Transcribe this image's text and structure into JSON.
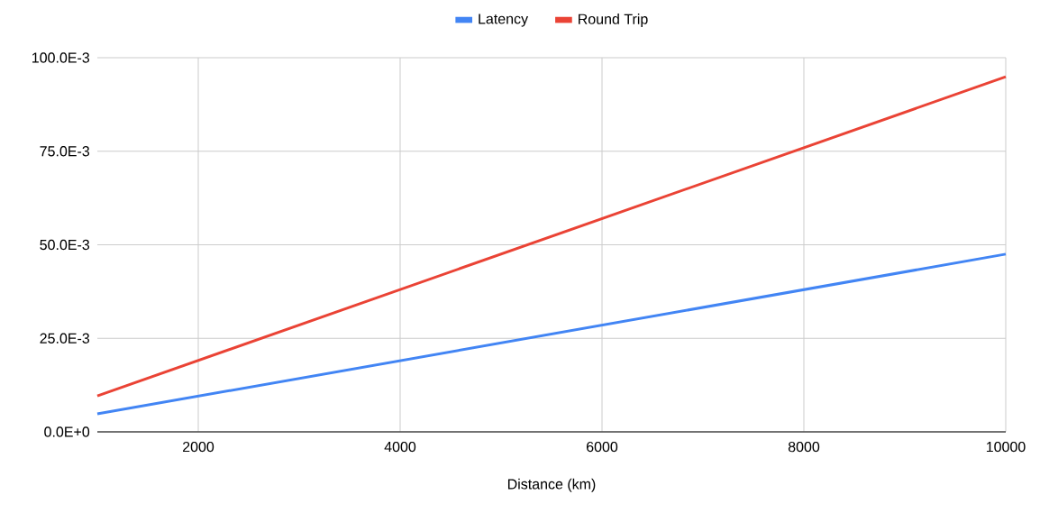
{
  "chart_data": {
    "type": "line",
    "xlabel": "Distance (km)",
    "x": [
      1000,
      10000
    ],
    "series": [
      {
        "name": "Latency",
        "color": "#4285f4",
        "values": [
          0.0048,
          0.0475
        ]
      },
      {
        "name": "Round Trip",
        "color": "#ea4335",
        "values": [
          0.0096,
          0.0949
        ]
      }
    ],
    "xlim": [
      1000,
      10000
    ],
    "xticks": [
      2000,
      4000,
      6000,
      8000,
      10000
    ],
    "ylim": [
      0,
      0.1
    ],
    "yticks": [
      {
        "value": 0,
        "label": "0.0E+0"
      },
      {
        "value": 0.025,
        "label": "25.0E-3"
      },
      {
        "value": 0.05,
        "label": "50.0E-3"
      },
      {
        "value": 0.075,
        "label": "75.0E-3"
      },
      {
        "value": 0.1,
        "label": "100.0E-3"
      }
    ],
    "grid": true,
    "legend": "top",
    "line_style": "solid"
  }
}
